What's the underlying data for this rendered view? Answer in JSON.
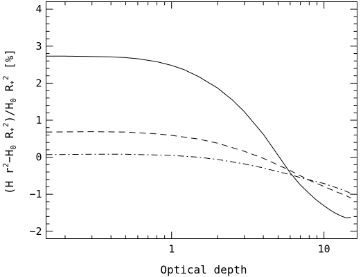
{
  "chart_data": {
    "type": "line",
    "title": "",
    "xlabel": "Optical depth",
    "ylabel_parts": {
      "open": "(H r",
      "sq1": "2",
      "mid": "−H",
      "sub1": "0",
      "mid2": " R",
      "star1": "*",
      "sq2": "2",
      "slash": ")/H",
      "sub2": "0",
      "mid3": " R",
      "star2": "*",
      "sq3": "2",
      "pct": " [%]"
    },
    "xscale": "log",
    "xlim": [
      0.15,
      16.5
    ],
    "ylim": [
      -2.2,
      4.2
    ],
    "x_ticks": [
      {
        "value": 1,
        "label": "1"
      },
      {
        "value": 10,
        "label": "10"
      }
    ],
    "y_ticks": [
      {
        "value": -2,
        "label": "−2"
      },
      {
        "value": -1,
        "label": "−1"
      },
      {
        "value": 0,
        "label": "0"
      },
      {
        "value": 1,
        "label": "1"
      },
      {
        "value": 2,
        "label": "2"
      },
      {
        "value": 3,
        "label": "3"
      },
      {
        "value": 4,
        "label": "4"
      }
    ],
    "grid": false,
    "series": [
      {
        "style": "solid",
        "x": [
          0.15,
          0.2,
          0.3,
          0.4,
          0.5,
          0.6,
          0.8,
          1.0,
          1.2,
          1.5,
          2.0,
          2.5,
          3.0,
          4.0,
          5.0,
          6.0,
          7.0,
          8.0,
          9.0,
          10.0,
          11.0,
          12.0,
          13.0,
          14.0,
          15.0
        ],
        "y": [
          2.73,
          2.73,
          2.72,
          2.71,
          2.69,
          2.66,
          2.58,
          2.48,
          2.37,
          2.18,
          1.87,
          1.55,
          1.23,
          0.62,
          0.05,
          -0.42,
          -0.75,
          -0.98,
          -1.17,
          -1.31,
          -1.43,
          -1.52,
          -1.59,
          -1.64,
          -1.62
        ]
      },
      {
        "style": "dashed",
        "x": [
          0.15,
          0.3,
          0.5,
          0.8,
          1.0,
          1.5,
          2.0,
          3.0,
          4.0,
          5.0,
          6.0,
          7.0,
          8.0,
          9.0,
          10.0,
          12.0,
          14.0,
          15.0
        ],
        "y": [
          0.68,
          0.69,
          0.68,
          0.63,
          0.59,
          0.49,
          0.38,
          0.16,
          -0.03,
          -0.21,
          -0.36,
          -0.5,
          -0.62,
          -0.71,
          -0.79,
          -0.93,
          -1.04,
          -1.1
        ]
      },
      {
        "style": "dashdot",
        "x": [
          0.15,
          0.3,
          0.5,
          0.8,
          1.0,
          1.5,
          2.0,
          3.0,
          4.0,
          5.0,
          6.0,
          7.0,
          8.0,
          10.0,
          12.0,
          14.0,
          15.0
        ],
        "y": [
          0.07,
          0.08,
          0.08,
          0.06,
          0.05,
          0.0,
          -0.06,
          -0.18,
          -0.29,
          -0.39,
          -0.47,
          -0.55,
          -0.61,
          -0.71,
          -0.82,
          -0.92,
          -0.98
        ]
      }
    ]
  }
}
